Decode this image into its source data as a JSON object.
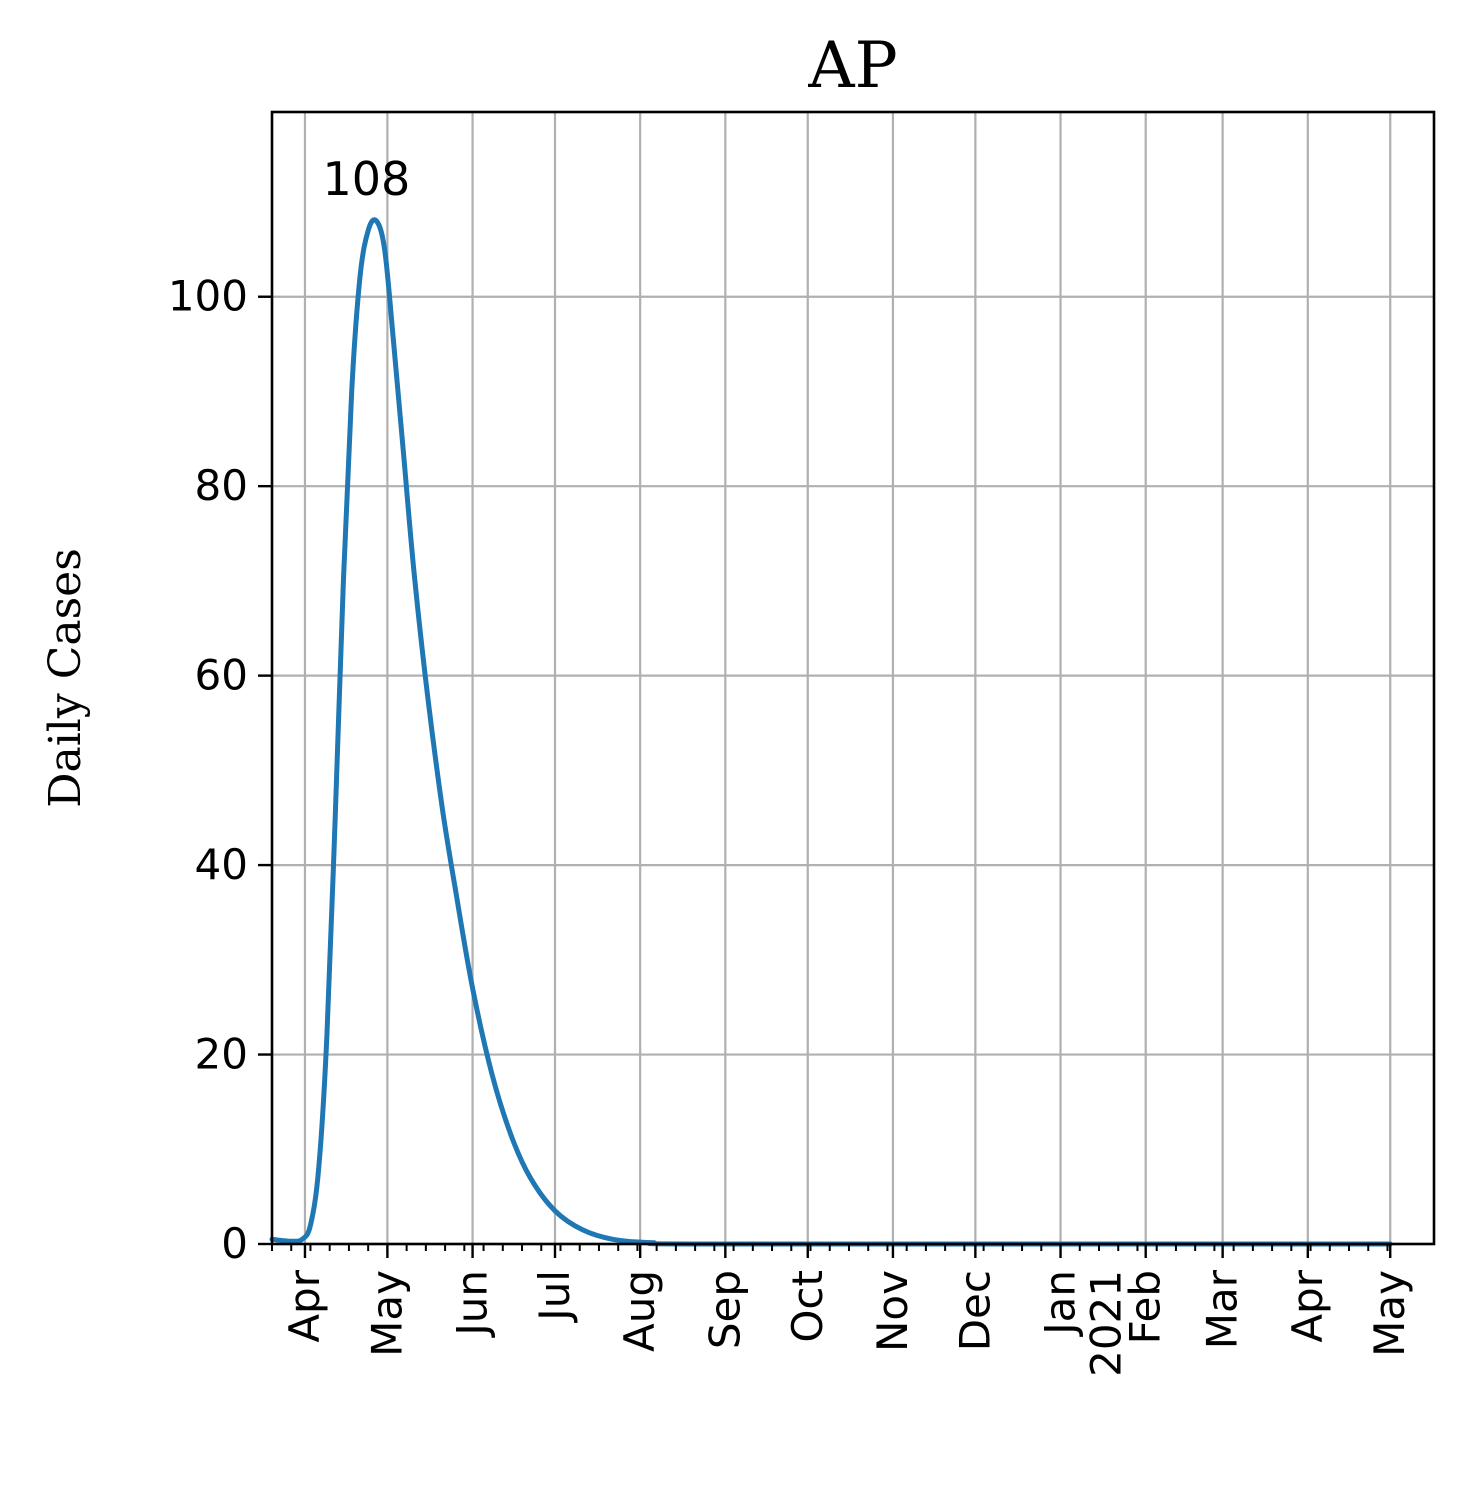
{
  "chart_data": {
    "type": "line",
    "title": "AP",
    "xlabel": "",
    "ylabel": "Daily Cases",
    "ylim": [
      0,
      119.5
    ],
    "xlim": [
      "2020-03-20",
      "2021-05-01"
    ],
    "yticks": [
      0,
      20,
      40,
      60,
      80,
      100
    ],
    "ytick_labels": [
      "0",
      "20",
      "40",
      "60",
      "80",
      "100"
    ],
    "xticks": [
      {
        "date": "2020-04-01",
        "label": "Apr"
      },
      {
        "date": "2020-05-01",
        "label": "May"
      },
      {
        "date": "2020-06-01",
        "label": "Jun"
      },
      {
        "date": "2020-07-01",
        "label": "Jul"
      },
      {
        "date": "2020-08-01",
        "label": "Aug"
      },
      {
        "date": "2020-09-01",
        "label": "Sep"
      },
      {
        "date": "2020-10-01",
        "label": "Oct"
      },
      {
        "date": "2020-11-01",
        "label": "Nov"
      },
      {
        "date": "2020-12-01",
        "label": "Dec"
      },
      {
        "date": "2021-01-01",
        "label": "Jan\n2021"
      },
      {
        "date": "2021-02-01",
        "label": "Feb"
      },
      {
        "date": "2021-03-01",
        "label": "Mar"
      },
      {
        "date": "2021-04-01",
        "label": "Apr"
      },
      {
        "date": "2021-05-01",
        "label": "May"
      }
    ],
    "grid": true,
    "series": [
      {
        "color": "#1f77b4",
        "points": [
          [
            "2020-03-20",
            0.5
          ],
          [
            "2020-03-27",
            0.3
          ],
          [
            "2020-03-31",
            0.5
          ],
          [
            "2020-04-03",
            2
          ],
          [
            "2020-04-06",
            8
          ],
          [
            "2020-04-09",
            22
          ],
          [
            "2020-04-12",
            45
          ],
          [
            "2020-04-15",
            70
          ],
          [
            "2020-04-18",
            90
          ],
          [
            "2020-04-21",
            102
          ],
          [
            "2020-04-24",
            107
          ],
          [
            "2020-04-27",
            108
          ],
          [
            "2020-04-30",
            105
          ],
          [
            "2020-05-03",
            96
          ],
          [
            "2020-05-07",
            83
          ],
          [
            "2020-05-11",
            70
          ],
          [
            "2020-05-16",
            57
          ],
          [
            "2020-05-21",
            46
          ],
          [
            "2020-05-26",
            37
          ],
          [
            "2020-06-01",
            27
          ],
          [
            "2020-06-08",
            18
          ],
          [
            "2020-06-15",
            11.5
          ],
          [
            "2020-06-22",
            7
          ],
          [
            "2020-07-01",
            3.5
          ],
          [
            "2020-07-11",
            1.5
          ],
          [
            "2020-07-22",
            0.5
          ],
          [
            "2020-08-05",
            0.15
          ],
          [
            "2020-09-01",
            0
          ],
          [
            "2021-05-01",
            0
          ]
        ]
      }
    ],
    "annotations": [
      {
        "text": "108",
        "date": "2020-04-27",
        "value": 108
      }
    ]
  }
}
